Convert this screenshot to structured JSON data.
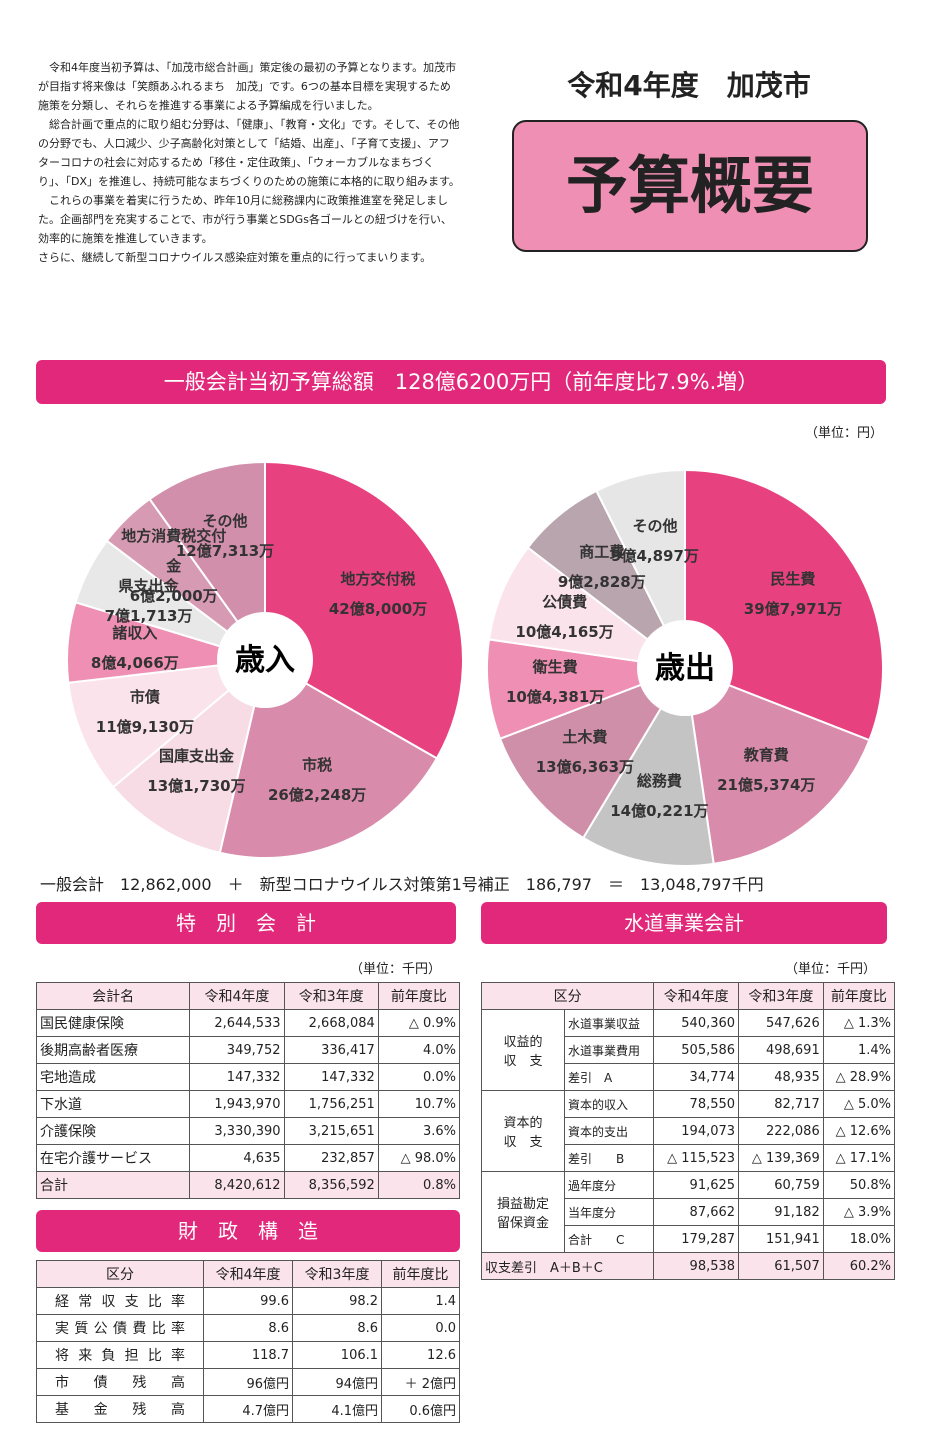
{
  "intro": [
    "　令和4年度当初予算は、「加茂市総合計画」策定後の最初の予算となります。加茂市が目指す将来像は「笑顔あふれるまち　加茂」です。6つの基本目標を実現するため施策を分類し、それらを推進する事業による予算編成を行いました。",
    "　総合計画で重点的に取り組む分野は、「健康」、「教育・文化」です。そして、その他の分野でも、人口減少、少子高齢化対策として「結婚、出産」、「子育て支援」、アフターコロナの社会に対応するため「移住・定住政策」、「ウォーカブルなまちづくり」、「DX」を推進し、持続可能なまちづくりのための施策に本格的に取り組みます。",
    "　これらの事業を着実に行うため、昨年10月に総務課内に政策推進室を発足しました。企画部門を充実することで、市が行う事業とSDGs各ゴールとの紐づけを行い、効率的に施策を推進していきます。",
    "さらに、継続して新型コロナウイルス感染症対策を重点的に行ってまいります。"
  ],
  "header": {
    "subtitle": "令和4年度　加茂市",
    "title": "予算概要"
  },
  "banner": "一般会計当初予算総額　128億6200万円（前年度比7.9%.増）",
  "unit": "（単位：円）",
  "charts": [
    {
      "type": "pie",
      "center": "歳入",
      "labels": [
        "地方交付税",
        "市税",
        "国庫支出金",
        "市債",
        "諸収入",
        "県支出金",
        "地方消費税交付金",
        "その他"
      ],
      "values": [
        4280000000,
        2622480000,
        1317300000,
        1191300000,
        840660000,
        717130000,
        620000000,
        1273130000
      ],
      "value_labels": [
        "42億8,000万",
        "26億2,248万",
        "13億1,730万",
        "11億9,130万",
        "8億4,066万",
        "7億1,713万",
        "6億2,000万",
        "12億7,313万"
      ],
      "colors": [
        "#e8417f",
        "#d98bab",
        "#f7dce6",
        "#fbe3ec",
        "#ef8fb3",
        "#e8e8e8",
        "#d69ab3",
        "#d28fac"
      ]
    },
    {
      "type": "pie",
      "center": "歳出",
      "labels": [
        "民生費",
        "教育費",
        "総務費",
        "土木費",
        "衛生費",
        "公債費",
        "商工費",
        "その他"
      ],
      "values": [
        3979710000,
        2153740000,
        1402210000,
        1363630000,
        1043810000,
        1041650000,
        928280000,
        948970000
      ],
      "value_labels": [
        "39億7,971万",
        "21億5,374万",
        "14億0,221万",
        "13億6,363万",
        "10億4,381万",
        "10億4,165万",
        "9億2,828万",
        "9億4,897万"
      ],
      "colors": [
        "#e8417f",
        "#d98bab",
        "#c4c4c4",
        "#cf8fa8",
        "#ef8fb3",
        "#fbe3ec",
        "#b9a5ad",
        "#e6e6e6"
      ]
    }
  ],
  "formula": "一般会計　12,862,000　＋　新型コロナウイルス対策第1号補正　186,797　＝　13,048,797千円",
  "special": {
    "title": "特　別　会　計",
    "unit": "（単位：千円）",
    "columns": [
      "会計名",
      "令和4年度",
      "令和3年度",
      "前年度比"
    ],
    "rows": [
      [
        "国民健康保険",
        "2,644,533",
        "2,668,084",
        "△ 0.9%"
      ],
      [
        "後期高齢者医療",
        "349,752",
        "336,417",
        "4.0%"
      ],
      [
        "宅地造成",
        "147,332",
        "147,332",
        "0.0%"
      ],
      [
        "下水道",
        "1,943,970",
        "1,756,251",
        "10.7%"
      ],
      [
        "介護保険",
        "3,330,390",
        "3,215,651",
        "3.6%"
      ],
      [
        "在宅介護サービス",
        "4,635",
        "232,857",
        "△ 98.0%"
      ],
      [
        "合計",
        "8,420,612",
        "8,356,592",
        "0.8%"
      ]
    ]
  },
  "fiscal": {
    "title": "財　政　構　造",
    "columns": [
      "区分",
      "令和4年度",
      "令和3年度",
      "前年度比"
    ],
    "rows": [
      [
        "経常収支比率",
        "99.6",
        "98.2",
        "1.4"
      ],
      [
        "実質公債費比率",
        "8.6",
        "8.6",
        "0.0"
      ],
      [
        "将来負担比率",
        "118.7",
        "106.1",
        "12.6"
      ],
      [
        "市債残高",
        "96億円",
        "94億円",
        "＋ 2億円"
      ],
      [
        "基金残高",
        "4.7億円",
        "4.1億円",
        "0.6億円"
      ]
    ]
  },
  "water": {
    "title": "水道事業会計",
    "unit": "（単位：千円）",
    "columns": [
      "区分",
      "令和4年度",
      "令和3年度",
      "前年度比"
    ],
    "groups": [
      {
        "label": "収益的\n収　支",
        "rows": [
          [
            "水道事業収益",
            "540,360",
            "547,626",
            "△ 1.3%"
          ],
          [
            "水道事業費用",
            "505,586",
            "498,691",
            "1.4%"
          ],
          [
            "差引　A",
            "34,774",
            "48,935",
            "△ 28.9%"
          ]
        ]
      },
      {
        "label": "資本的\n収　支",
        "rows": [
          [
            "資本的収入",
            "78,550",
            "82,717",
            "△ 5.0%"
          ],
          [
            "資本的支出",
            "194,073",
            "222,086",
            "△ 12.6%"
          ],
          [
            "差引　　B",
            "△ 115,523",
            "△ 139,369",
            "△ 17.1%"
          ]
        ]
      },
      {
        "label": "損益勘定\n留保資金",
        "rows": [
          [
            "過年度分",
            "91,625",
            "60,759",
            "50.8%"
          ],
          [
            "当年度分",
            "87,662",
            "91,182",
            "△ 3.9%"
          ],
          [
            "合計　　C",
            "179,287",
            "151,941",
            "18.0%"
          ]
        ]
      }
    ],
    "total": [
      "収支差引　A＋B＋C",
      "98,538",
      "61,507",
      "60.2%"
    ]
  }
}
